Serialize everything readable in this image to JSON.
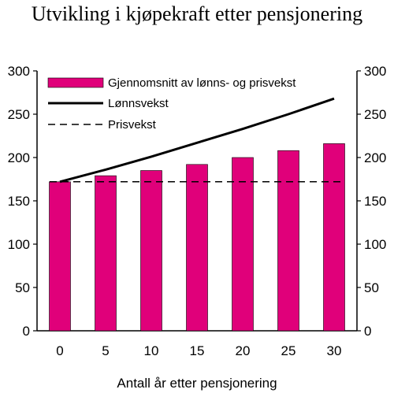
{
  "chart_data": {
    "type": "bar",
    "title": "Utvikling i kjøpekraft etter pensjonering",
    "xlabel": "Antall år etter pensjonering",
    "ylabel": "",
    "categories": [
      "0",
      "5",
      "10",
      "15",
      "20",
      "25",
      "30"
    ],
    "x": [
      0,
      5,
      10,
      15,
      20,
      25,
      30
    ],
    "ylim": [
      0,
      300
    ],
    "yticks": [
      0,
      50,
      100,
      150,
      200,
      250,
      300
    ],
    "y_axis_both_sides": true,
    "grid": false,
    "legend_position": "top-left",
    "series": [
      {
        "name": "Gjennomsnitt av lønns- og prisvekst",
        "kind": "bar",
        "color": "#e0007a",
        "values": [
          172,
          179,
          185,
          192,
          200,
          208,
          216
        ]
      },
      {
        "name": "Lønnsvekst",
        "kind": "line",
        "style": "solid",
        "color": "#000000",
        "values": [
          172,
          186,
          201,
          217,
          233,
          250,
          268
        ]
      },
      {
        "name": "Prisvekst",
        "kind": "line",
        "style": "dashed",
        "color": "#000000",
        "values": [
          172,
          172,
          172,
          172,
          172,
          172,
          172
        ]
      }
    ]
  }
}
